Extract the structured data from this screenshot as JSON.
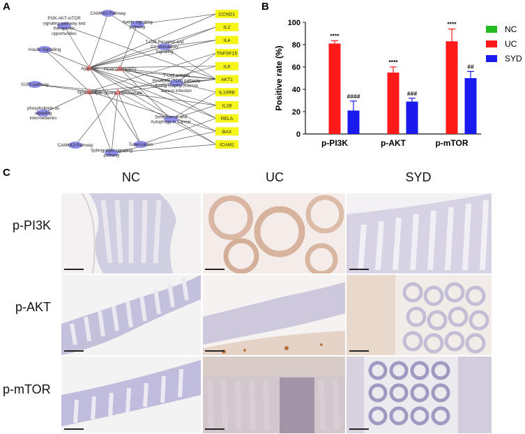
{
  "panels": {
    "A": "A",
    "B": "B",
    "C": "C"
  },
  "network": {
    "pathways": [
      "PI3K-AKT-mTOR signaling pathway and therapeutic opportunities",
      "CAMKK2 Pathway",
      "Apelin signaling pathway",
      "Insulin Signalling",
      "T-Cell Receptor and Co-stimulatory Signaling",
      "T-Cell antigen Receptor (TCR) pathway during Staphylococcus aureus infection",
      "S1P3 pathway",
      "phospholipids as signaling intermediaries",
      "Senescence and Autophagy in Cancer",
      "CAMKK3 Pathway",
      "Tuberculosis",
      "Sphingolipid signaling pathway"
    ],
    "compounds": [
      "Apigenin",
      "PI(18:0/16:1(9Z))",
      "Sphinganine",
      "Sphingosine 1-phosphate"
    ],
    "genes": [
      "CCND1",
      "IL2",
      "IL4",
      "TNFSF15",
      "IL6",
      "AKT1",
      "IL10RB",
      "IL1B",
      "RELA",
      "BAX",
      "ICAM1"
    ],
    "colors": {
      "pathway": "#8f8fea",
      "compound": "#f08c8c",
      "gene": "#f5f518",
      "edge": "#555555"
    }
  },
  "chart_data": {
    "type": "bar",
    "categories": [
      "p-PI3K",
      "p-AKT",
      "p-mTOR"
    ],
    "series": [
      {
        "name": "NC",
        "values": [
          0,
          0,
          0
        ],
        "errors": [
          0,
          0,
          0
        ],
        "annotations": [
          "",
          "",
          ""
        ],
        "color": "#22bb22"
      },
      {
        "name": "UC",
        "values": [
          81,
          55,
          83
        ],
        "errors": [
          2.5,
          5,
          11
        ],
        "annotations": [
          "****",
          "****",
          "****"
        ],
        "color": "#ff1a1a"
      },
      {
        "name": "SYD",
        "values": [
          21,
          29,
          50
        ],
        "errors": [
          8.5,
          3,
          6
        ],
        "annotations": [
          "####",
          "###",
          "##"
        ],
        "color": "#1a1aee"
      }
    ],
    "ylabel": "Positive rate (%)",
    "xlabel": "",
    "ylim": [
      0,
      100
    ],
    "yticks": [
      0,
      20,
      40,
      60,
      80,
      100
    ],
    "legend_position": "right"
  },
  "histology": {
    "columns": [
      "NC",
      "UC",
      "SYD"
    ],
    "rows": [
      "p-PI3K",
      "p-AKT",
      "p-mTOR"
    ]
  }
}
